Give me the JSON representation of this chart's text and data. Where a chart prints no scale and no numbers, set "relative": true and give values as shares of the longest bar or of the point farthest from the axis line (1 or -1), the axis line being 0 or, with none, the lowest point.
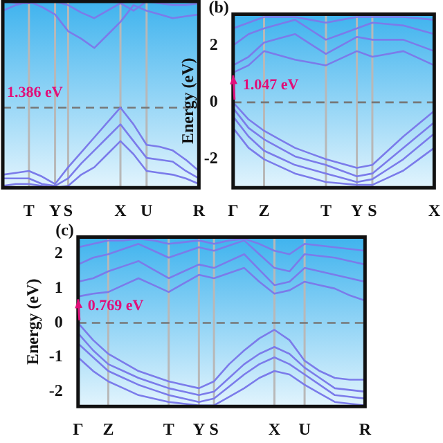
{
  "chart_data": [
    {
      "type": "line",
      "categories": [
        null,
        null,
        "T",
        null,
        "Y",
        "S",
        null,
        null,
        null,
        "X",
        null,
        "U",
        null,
        null,
        null,
        "R"
      ],
      "series": [
        {
          "color": "#7b7bea",
          "values": [
            0.95,
            0.98,
            1,
            0.97,
            0.93,
            0.84,
            0.8,
            0.75,
            0.82,
            0.89,
            0.98,
            0.95,
            0.93,
            0.91,
            0.92,
            0.93
          ]
        },
        {
          "color": "#7b7bea",
          "values": [
            1,
            0.99,
            0.99,
            1,
            1,
            0.98,
            0.94,
            0.91,
            0.95,
            0.99,
            0.95,
            1,
            0.99,
            0.98,
            0.98,
            0.99
          ]
        },
        {
          "color": "#7b7bea",
          "values": [
            0.07,
            0.08,
            0.09,
            0.06,
            0.02,
            0.11,
            0.19,
            0.27,
            0.35,
            0.43,
            0.34,
            0.23,
            0.22,
            0.2,
            0.15,
            0.09
          ]
        },
        {
          "color": "#7b7bea",
          "values": [
            0.05,
            0.05,
            0.05,
            0.02,
            0.01,
            0.05,
            0.13,
            0.2,
            0.27,
            0.34,
            0.25,
            0.16,
            0.15,
            0.14,
            0.09,
            0.05
          ]
        },
        {
          "color": "#7b7bea",
          "values": [
            0.01,
            0.02,
            0.02,
            0.01,
            0,
            0.01,
            0.07,
            0.11,
            0.18,
            0.25,
            0.18,
            0.09,
            0.08,
            0.07,
            0.05,
            0.02
          ]
        }
      ],
      "relative": true,
      "tick_labels": "x",
      "grid": "x",
      "legend": false,
      "ref_lines": [
        {
          "axis": "y",
          "value": 0.43,
          "color": "#777777",
          "line_style": "dashed"
        }
      ],
      "annotations": [
        "1.386 eV"
      ]
    },
    {
      "type": "line",
      "title": "(b)",
      "ylabel": "Energy (eV)",
      "categories": [
        "Γ",
        null,
        "Z",
        null,
        null,
        null,
        "T",
        null,
        "Y",
        "S",
        null,
        null,
        null,
        "X"
      ],
      "series": [
        {
          "color": "#7b7bea",
          "values": [
            1.047,
            1.3,
            1.8,
            1.65,
            1.5,
            1.4,
            1.3,
            1.55,
            1.8,
            1.6,
            1.7,
            1.8,
            1.55,
            1.3
          ]
        },
        {
          "color": "#7b7bea",
          "values": [
            1.3,
            1.6,
            2.1,
            2.25,
            2.4,
            2.05,
            1.7,
            2.0,
            2.3,
            2.2,
            2.2,
            2.2,
            2.0,
            1.8
          ]
        },
        {
          "color": "#7b7bea",
          "values": [
            2.0,
            2.4,
            2.6,
            2.75,
            2.9,
            2.55,
            2.2,
            2.4,
            2.6,
            2.8,
            2.75,
            2.7,
            2.55,
            2.4
          ]
        },
        {
          "color": "#7b7bea",
          "values": [
            2.6,
            2.8,
            3.0,
            3.0,
            3.0,
            2.9,
            2.8,
            2.9,
            3.0,
            3.0,
            3.0,
            3.0,
            2.95,
            2.9
          ]
        },
        {
          "color": "#7b7bea",
          "values": [
            0,
            -0.6,
            -1.0,
            -1.3,
            -1.6,
            -1.8,
            -2.0,
            -2.15,
            -2.3,
            -2.2,
            -1.7,
            -1.2,
            -0.75,
            -0.3
          ]
        },
        {
          "color": "#7b7bea",
          "values": [
            -0.2,
            -0.9,
            -1.3,
            -1.6,
            -1.9,
            -2.05,
            -2.2,
            -2.4,
            -2.6,
            -2.5,
            -2.05,
            -1.6,
            -1.15,
            -0.7
          ]
        },
        {
          "color": "#7b7bea",
          "values": [
            -0.5,
            -1.2,
            -1.7,
            -1.95,
            -2.2,
            -2.35,
            -2.5,
            -2.65,
            -2.8,
            -2.7,
            -2.35,
            -2.0,
            -1.55,
            -1.1
          ]
        },
        {
          "color": "#7b7bea",
          "values": [
            -0.9,
            -1.6,
            -2.0,
            -2.25,
            -2.5,
            -2.65,
            -2.8,
            -2.85,
            -2.9,
            -2.9,
            -2.65,
            -2.4,
            -2.0,
            -1.6
          ]
        }
      ],
      "ylim": [
        -3,
        3.1
      ],
      "yticks": [
        -2,
        0,
        2
      ],
      "grid": "x",
      "legend": false,
      "ref_lines": [
        {
          "axis": "y",
          "value": 0,
          "color": "#777777",
          "line_style": "dashed"
        }
      ],
      "annotations": [
        {
          "text": "1.047 eV",
          "x": "Γ",
          "y": 1.047
        }
      ]
    },
    {
      "type": "line",
      "title": "(c)",
      "ylabel": "Energy (eV)",
      "categories": [
        "Γ",
        null,
        "Z",
        null,
        null,
        null,
        "T",
        null,
        "Y",
        "S",
        null,
        null,
        null,
        "X",
        null,
        "U",
        null,
        null,
        null,
        "R"
      ],
      "series": [
        {
          "color": "#7b7bea",
          "values": [
            0,
            -0.5,
            -0.9,
            -1.15,
            -1.4,
            -1.55,
            -1.7,
            -1.8,
            -1.9,
            -1.7,
            -1.2,
            -0.8,
            -0.45,
            -0.2,
            -0.5,
            -1.1,
            -1.4,
            -1.6,
            -1.65,
            -1.65
          ]
        },
        {
          "color": "#7b7bea",
          "values": [
            -0.3,
            -0.8,
            -1.2,
            -1.4,
            -1.6,
            -1.75,
            -1.9,
            -2.0,
            -2.1,
            -2.0,
            -1.6,
            -1.2,
            -0.9,
            -0.7,
            -0.9,
            -1.3,
            -1.6,
            -1.9,
            -1.95,
            -2.0
          ]
        },
        {
          "color": "#7b7bea",
          "values": [
            -0.6,
            -1.0,
            -1.4,
            -1.6,
            -1.8,
            -1.95,
            -2.1,
            -2.2,
            -2.3,
            -2.2,
            -1.85,
            -1.5,
            -1.2,
            -1.0,
            -1.2,
            -1.5,
            -1.8,
            -2.1,
            -2.15,
            -2.2
          ]
        },
        {
          "color": "#7b7bea",
          "values": [
            -1.0,
            -1.4,
            -1.7,
            -1.9,
            -2.1,
            -2.2,
            -2.3,
            -2.35,
            -2.4,
            -2.4,
            -2.15,
            -1.9,
            -1.6,
            -1.4,
            -1.5,
            -1.8,
            -2.05,
            -2.3,
            -2.35,
            -2.4
          ]
        },
        {
          "color": "#7b7bea",
          "values": [
            0.769,
            0.85,
            0.9,
            1.1,
            1.3,
            1.1,
            0.9,
            1.15,
            1.4,
            1.3,
            1.45,
            1.6,
            1.2,
            0.85,
            0.95,
            1.2,
            1.1,
            1.0,
            0.8,
            0.65
          ]
        },
        {
          "color": "#7b7bea",
          "values": [
            1.2,
            1.3,
            1.5,
            1.65,
            1.8,
            1.55,
            1.3,
            1.5,
            1.7,
            1.6,
            1.8,
            2.0,
            1.55,
            1.1,
            1.2,
            1.6,
            1.5,
            1.4,
            1.3,
            1.2
          ]
        },
        {
          "color": "#7b7bea",
          "values": [
            1.7,
            1.9,
            2.0,
            2.15,
            2.3,
            2.1,
            1.9,
            2.05,
            2.2,
            2.1,
            2.25,
            2.4,
            2.0,
            1.6,
            1.5,
            2.0,
            1.95,
            1.9,
            1.8,
            1.7
          ]
        },
        {
          "color": "#7b7bea",
          "values": [
            2.2,
            2.3,
            2.4,
            2.4,
            2.45,
            2.4,
            2.3,
            2.35,
            2.4,
            2.3,
            2.4,
            2.45,
            2.3,
            2.1,
            2.0,
            2.3,
            2.25,
            2.2,
            2.15,
            2.1
          ]
        }
      ],
      "ylim": [
        -2.43,
        2.5
      ],
      "yticks": [
        -2,
        -1,
        0,
        1,
        2
      ],
      "grid": "x",
      "legend": false,
      "ref_lines": [
        {
          "axis": "y",
          "value": 0,
          "color": "#777777",
          "line_style": "dashed"
        }
      ],
      "annotations": [
        {
          "text": "0.769 eV",
          "x": "Γ",
          "y": 0.769
        }
      ]
    }
  ]
}
